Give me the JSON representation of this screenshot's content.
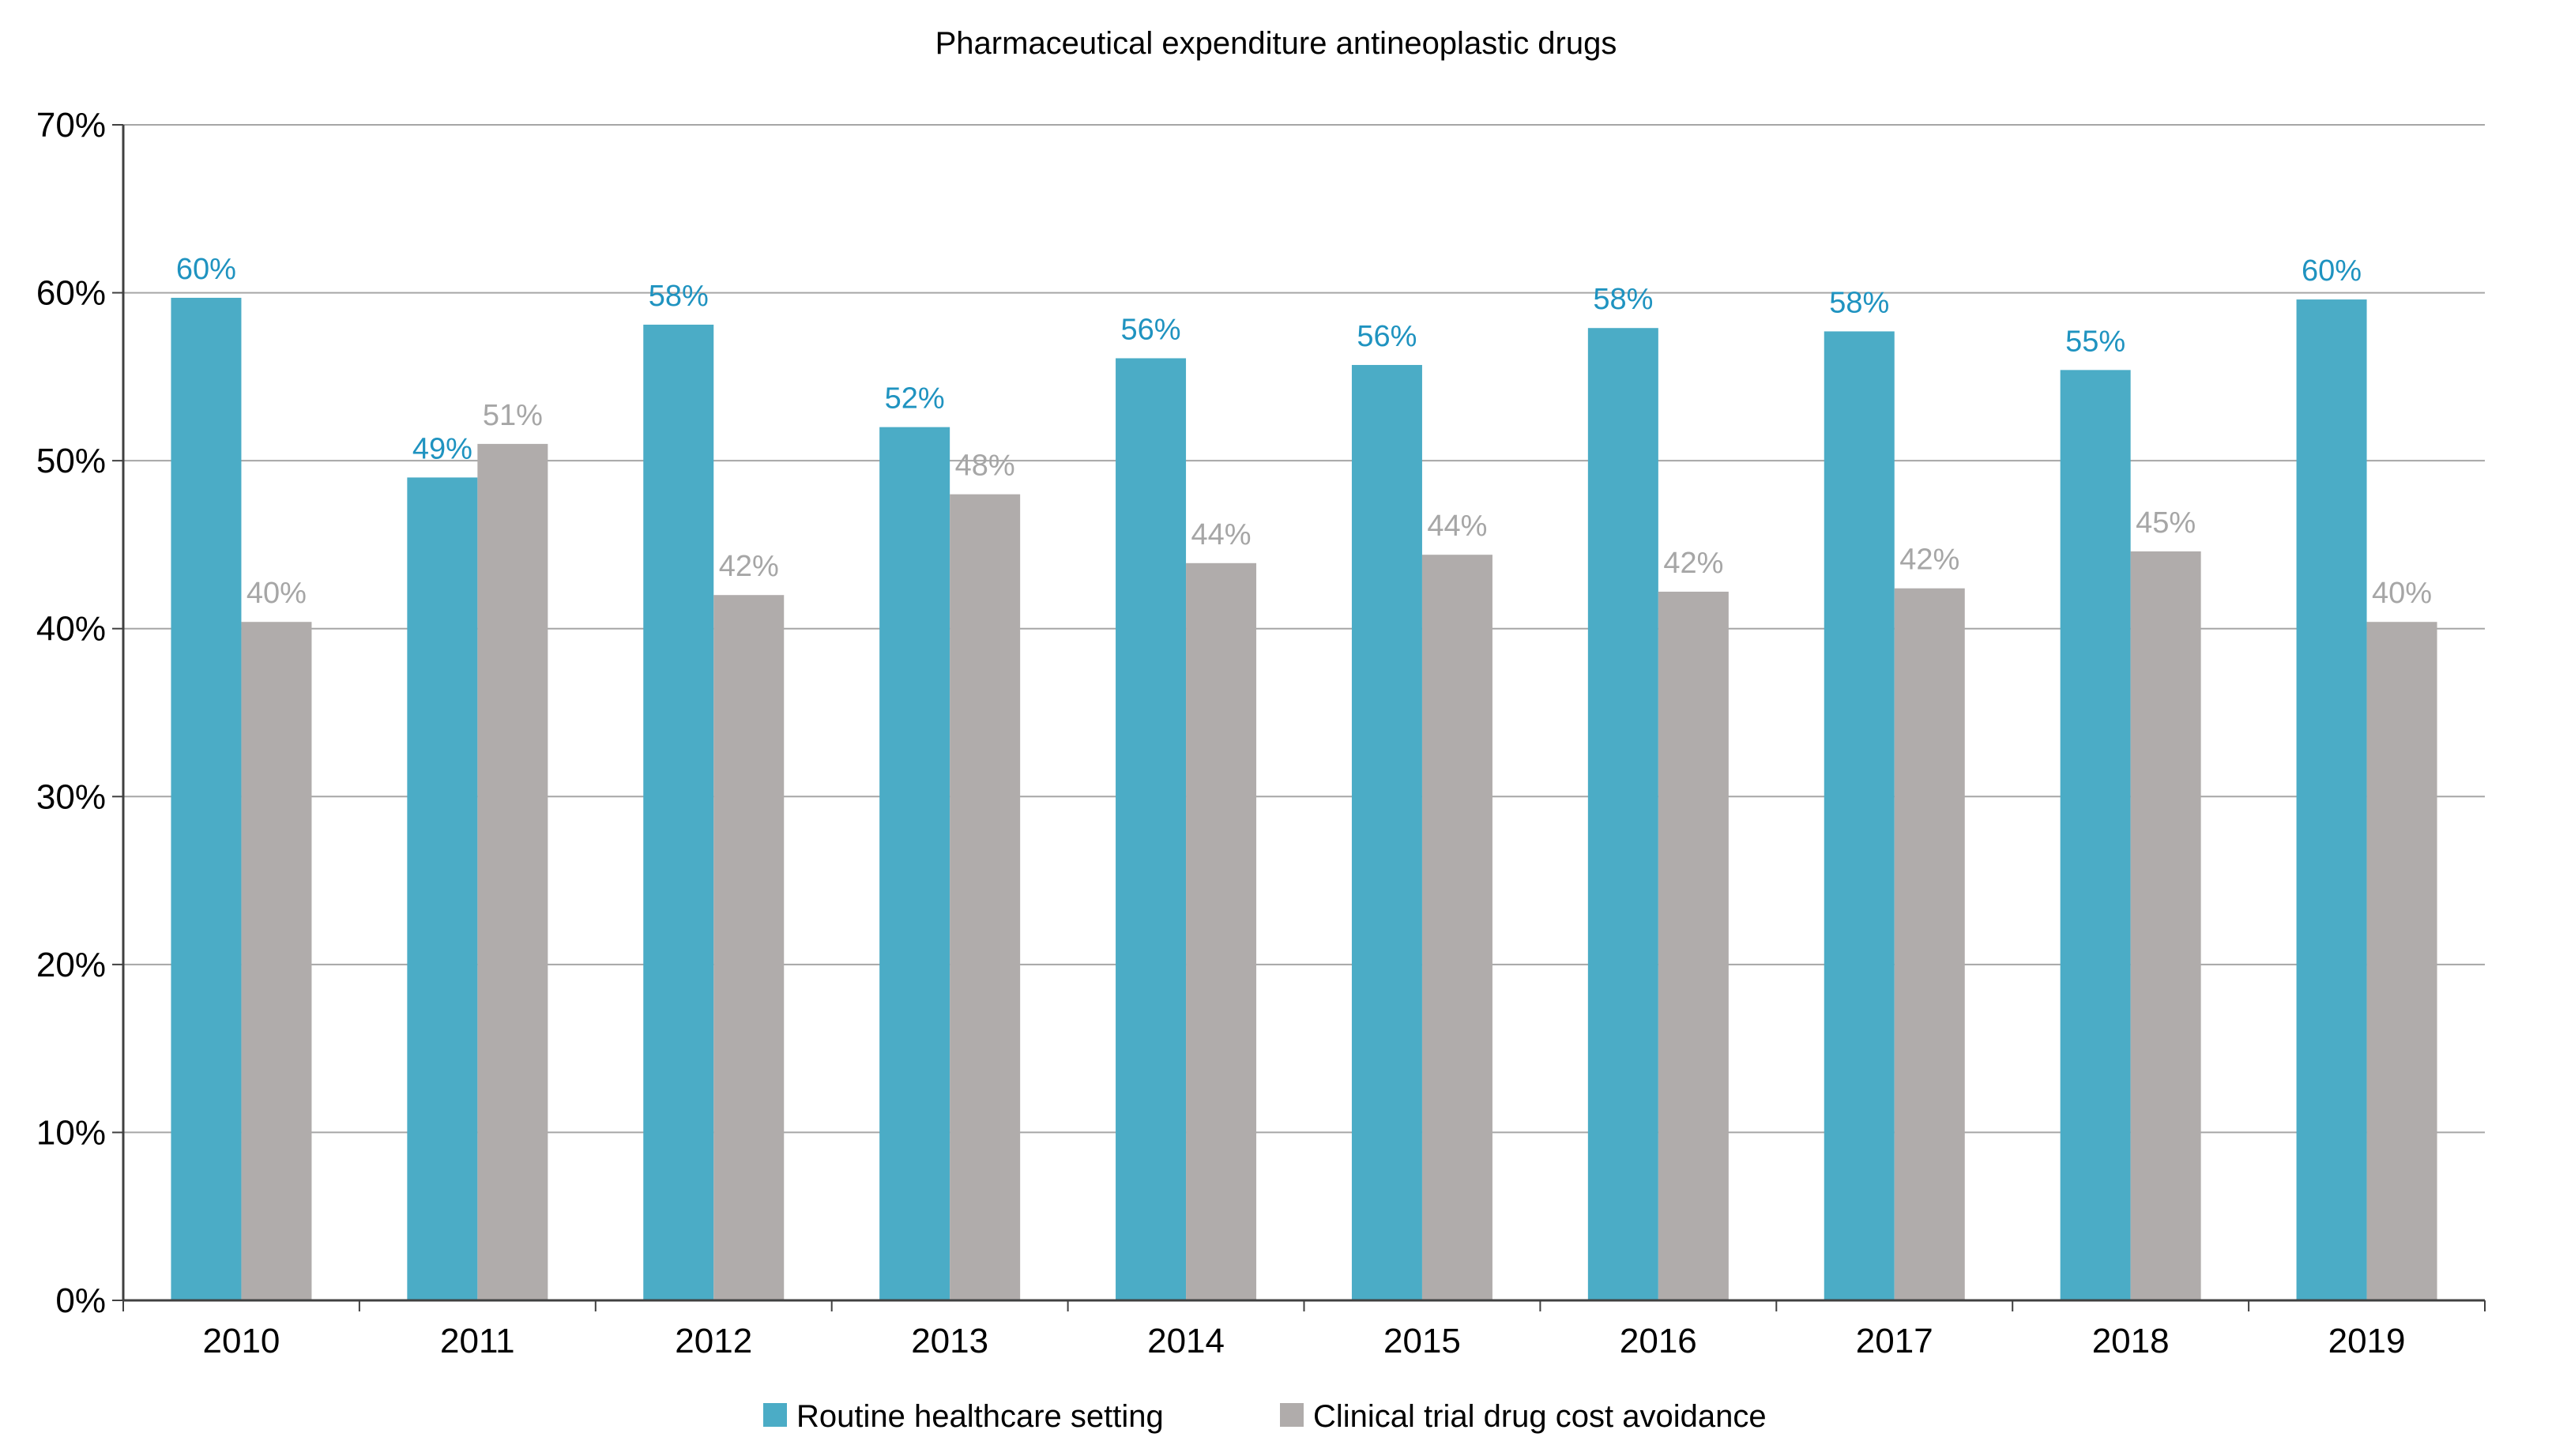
{
  "chart_data": {
    "type": "bar",
    "title": "Pharmaceutical expenditure antineoplastic drugs",
    "xlabel": "",
    "ylabel": "",
    "ylim": [
      0,
      70
    ],
    "y_ticks": [
      0,
      10,
      20,
      30,
      40,
      50,
      60,
      70
    ],
    "y_tick_labels": [
      "0%",
      "10%",
      "20%",
      "30%",
      "40%",
      "50%",
      "60%",
      "70%"
    ],
    "grid": true,
    "legend_position": "bottom-center",
    "categories": [
      "2010",
      "2011",
      "2012",
      "2013",
      "2014",
      "2015",
      "2016",
      "2017",
      "2018",
      "2019"
    ],
    "series": [
      {
        "name": "Routine healthcare setting",
        "color": "#4bacc6",
        "label_color": "#1f93c0",
        "values": [
          59.7,
          49.0,
          58.1,
          52.0,
          56.1,
          55.7,
          57.9,
          57.7,
          55.4,
          59.6
        ],
        "labels": [
          "60%",
          "49%",
          "58%",
          "52%",
          "56%",
          "56%",
          "58%",
          "58%",
          "55%",
          "60%"
        ]
      },
      {
        "name": "Clinical trial drug cost avoidance",
        "color": "#b0acab",
        "label_color": "#a6a6a6",
        "values": [
          40.4,
          51.0,
          42.0,
          48.0,
          43.9,
          44.4,
          42.2,
          42.4,
          44.6,
          40.4
        ],
        "labels": [
          "40%",
          "51%",
          "42%",
          "48%",
          "44%",
          "44%",
          "42%",
          "42%",
          "45%",
          "40%"
        ]
      }
    ],
    "gridline_color": "#a6a6a6",
    "axis_color": "#404040"
  }
}
